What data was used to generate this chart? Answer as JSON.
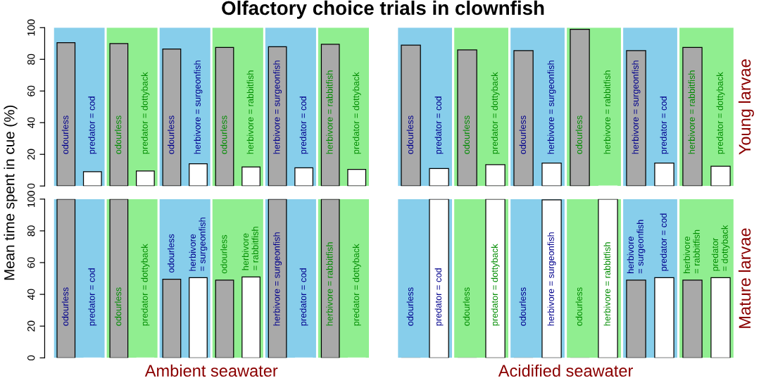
{
  "chart_data": [
    {
      "type": "bar",
      "title": "Olfactory choice trials in clownfish",
      "ylabel": "Mean time spent in cue (%)",
      "categories": [
        "odourless",
        "predator = cod",
        "odourless",
        "predator = dottyback",
        "odourless",
        "herbivore = surgeonfish",
        "odourless",
        "herbivore = rabbitfish",
        "herbivore = surgeonfish",
        "predator = cod",
        "herbivore = rabbitfish",
        "predator = dottyback"
      ],
      "values": [
        90.5,
        9,
        90,
        9.5,
        86.5,
        14,
        87.5,
        12,
        88,
        11.5,
        89.5,
        10.5
      ],
      "colors": [
        "#a9a9a9",
        "#ffffff",
        "#a9a9a9",
        "#ffffff",
        "#a9a9a9",
        "#ffffff",
        "#a9a9a9",
        "#ffffff",
        "#a9a9a9",
        "#ffffff",
        "#a9a9a9",
        "#ffffff"
      ],
      "ylim": [
        0,
        100
      ],
      "yticks": [
        0,
        20,
        40,
        60,
        80,
        100
      ]
    },
    {
      "type": "bar",
      "y2label": "Young larvae",
      "categories": [
        "odourless",
        "predator = cod",
        "odourless",
        "predator = dottyback",
        "odourless",
        "herbivore = surgeonfish",
        "odourless",
        "herbivore = rabbitfish",
        "herbivore = surgeonfish",
        "predator = cod",
        "herbivore = rabbitfish",
        "predator = dottyback"
      ],
      "values": [
        89,
        11,
        86,
        13.5,
        85.5,
        14.5,
        99,
        0,
        85.5,
        14.5,
        87.5,
        12.5
      ],
      "colors": [
        "#a9a9a9",
        "#ffffff",
        "#a9a9a9",
        "#ffffff",
        "#a9a9a9",
        "#ffffff",
        "#a9a9a9",
        "#ffffff",
        "#a9a9a9",
        "#ffffff",
        "#a9a9a9",
        "#ffffff"
      ],
      "ylim": [
        0,
        100
      ],
      "yticks": [
        0,
        20,
        40,
        60,
        80,
        100
      ],
      "tick_labels": "x"
    },
    {
      "type": "bar",
      "xlabel": "Ambient seawater",
      "categories": [
        "odourless",
        "predator = cod",
        "odourless",
        "predator = dottyback",
        "odourless",
        "herbivore = surgeonfish",
        "odourless",
        "herbivore = rabbitfish",
        "herbivore = surgeonfish",
        "predator = cod",
        "herbivore = rabbitfish",
        "predator = dottyback"
      ],
      "values": [
        100,
        0,
        100,
        0,
        49.5,
        50.5,
        49,
        51,
        100,
        0,
        100,
        0
      ],
      "colors": [
        "#a9a9a9",
        "#ffffff",
        "#a9a9a9",
        "#ffffff",
        "#a9a9a9",
        "#ffffff",
        "#a9a9a9",
        "#ffffff",
        "#a9a9a9",
        "#ffffff",
        "#a9a9a9",
        "#ffffff"
      ],
      "ylim": [
        0,
        100
      ],
      "yticks": [
        0,
        20,
        40,
        60,
        80,
        100
      ]
    },
    {
      "type": "bar",
      "xlabel": "Acidified seawater",
      "y2label": "Mature larvae",
      "categories": [
        "odourless",
        "predator = cod",
        "odourless",
        "predator = dottyback",
        "odourless",
        "herbivore = surgeonfish",
        "odourless",
        "herbivore = rabbitfish",
        "herbivore = surgeonfish",
        "predator = cod",
        "herbivore = rabbitfish",
        "predator = dottyback"
      ],
      "values": [
        0,
        100,
        0,
        100,
        0,
        99.5,
        0,
        100,
        49,
        50.5,
        49,
        50.5
      ],
      "colors": [
        "#a9a9a9",
        "#ffffff",
        "#a9a9a9",
        "#ffffff",
        "#a9a9a9",
        "#ffffff",
        "#a9a9a9",
        "#ffffff",
        "#a9a9a9",
        "#ffffff",
        "#a9a9a9",
        "#ffffff"
      ],
      "ylim": [
        0,
        100
      ],
      "yticks": [
        0,
        20,
        40,
        60,
        80,
        100
      ],
      "tick_labels": "x"
    }
  ]
}
